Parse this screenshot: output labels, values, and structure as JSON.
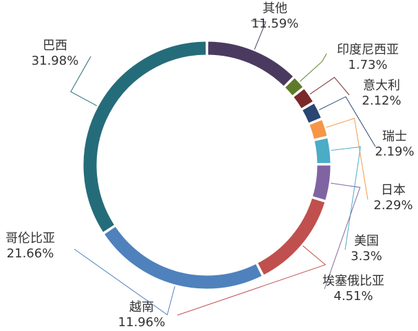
{
  "chart_data": {
    "type": "pie",
    "variant": "donut",
    "title": "",
    "label_format": "{name}\n{value}%",
    "series": [
      {
        "name": "其他",
        "value": 11.59,
        "color": "#4f3a63"
      },
      {
        "name": "印度尼西亚",
        "value": 1.73,
        "color": "#5e7a2c"
      },
      {
        "name": "意大利",
        "value": 2.12,
        "color": "#7a2a2a"
      },
      {
        "name": "瑞士",
        "value": 2.19,
        "color": "#2c4a73"
      },
      {
        "name": "日本",
        "value": 2.29,
        "color": "#f79646"
      },
      {
        "name": "美国",
        "value": 3.3,
        "color": "#4bacc6"
      },
      {
        "name": "埃塞俄比亚",
        "value": 4.51,
        "color": "#8064a2"
      },
      {
        "name": "越南",
        "value": 11.96,
        "color": "#9bbb59"
      },
      {
        "name": "哥伦比亚",
        "value": 21.66,
        "color": "#c0504d"
      },
      {
        "name": "巴西",
        "value": 31.98,
        "color": "#4f81bd"
      }
    ],
    "value_labels": [
      "11.59%",
      "1.73%",
      "2.12%",
      "2.19%",
      "2.29%",
      "3.3%",
      "4.51%",
      "11.96%",
      "21.66%",
      "31.98%"
    ]
  }
}
